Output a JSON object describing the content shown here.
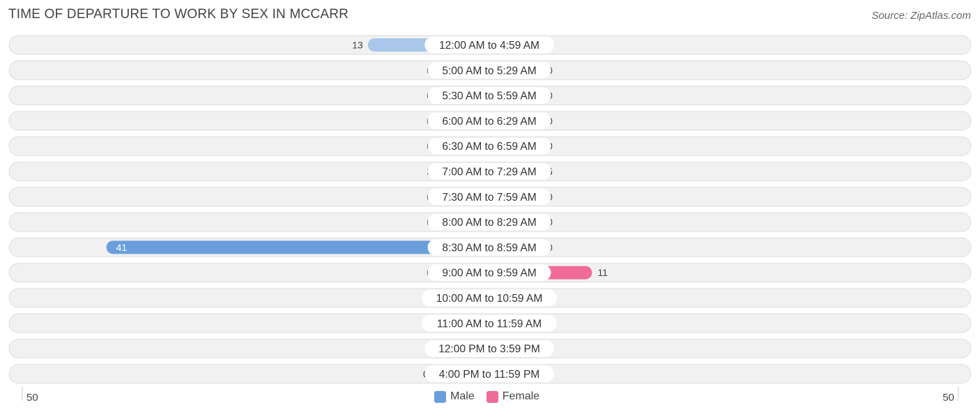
{
  "header": {
    "title": "TIME OF DEPARTURE TO WORK BY SEX IN MCCARR",
    "source": "Source: ZipAtlas.com"
  },
  "colors": {
    "male": "#6a9fdc",
    "male_light": "#a8c7ea",
    "female": "#f06b97",
    "female_light": "#f6a8c1",
    "row_bg": "#f1f1f1",
    "row_border": "#dddddd"
  },
  "legend": {
    "male_label": "Male",
    "female_label": "Female"
  },
  "chart_data": {
    "type": "bar",
    "orientation": "horizontal-diverging",
    "title": "TIME OF DEPARTURE TO WORK BY SEX IN MCCARR",
    "categories": [
      "12:00 AM to 4:59 AM",
      "5:00 AM to 5:29 AM",
      "5:30 AM to 5:59 AM",
      "6:00 AM to 6:29 AM",
      "6:30 AM to 6:59 AM",
      "7:00 AM to 7:29 AM",
      "7:30 AM to 7:59 AM",
      "8:00 AM to 8:29 AM",
      "8:30 AM to 8:59 AM",
      "9:00 AM to 9:59 AM",
      "10:00 AM to 10:59 AM",
      "11:00 AM to 11:59 AM",
      "12:00 PM to 3:59 PM",
      "4:00 PM to 11:59 PM"
    ],
    "series": [
      {
        "name": "Male",
        "values": [
          13,
          0,
          0,
          0,
          0,
          3,
          0,
          0,
          41,
          0,
          0,
          0,
          0,
          6
        ]
      },
      {
        "name": "Female",
        "values": [
          0,
          0,
          0,
          0,
          0,
          5,
          0,
          0,
          0,
          11,
          0,
          0,
          0,
          0
        ]
      }
    ],
    "axis": {
      "left_label": "50",
      "right_label": "50",
      "max": 50
    },
    "legend_position": "bottom-center"
  }
}
